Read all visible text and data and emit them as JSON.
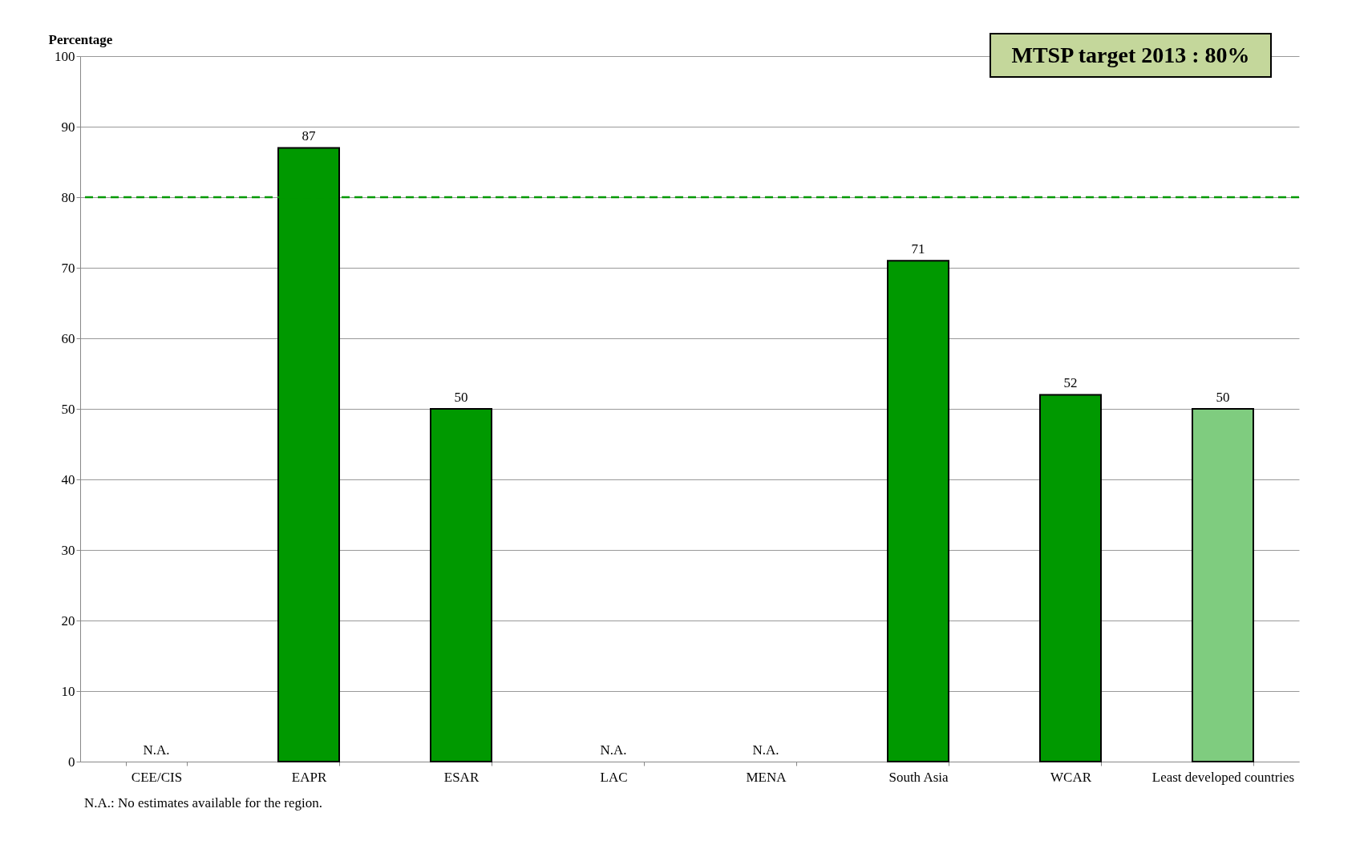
{
  "chart_data": {
    "type": "bar",
    "ylabel": "Percentage",
    "categories": [
      "CEE/CIS",
      "EAPR",
      "ESAR",
      "LAC",
      "MENA",
      "South Asia",
      "WCAR",
      "Least developed countries"
    ],
    "values": [
      null,
      87,
      50,
      null,
      null,
      71,
      52,
      50
    ],
    "value_labels": [
      "N.A.",
      "87",
      "50",
      "N.A.",
      "N.A.",
      "71",
      "52",
      "50"
    ],
    "colors": [
      "#009900",
      "#009900",
      "#009900",
      "#009900",
      "#009900",
      "#009900",
      "#009900",
      "#7fcc7f"
    ],
    "ylim": [
      0,
      100
    ],
    "yticks": [
      0,
      10,
      20,
      30,
      40,
      50,
      60,
      70,
      80,
      90,
      100
    ],
    "grid": "y",
    "ref_lines": [
      {
        "axis": "y",
        "value": 80,
        "color": "#009900",
        "line_style": "dashed"
      }
    ],
    "annotations": [
      "MTSP target 2013 : 80%",
      "N.A.: No estimates available for the region."
    ]
  }
}
